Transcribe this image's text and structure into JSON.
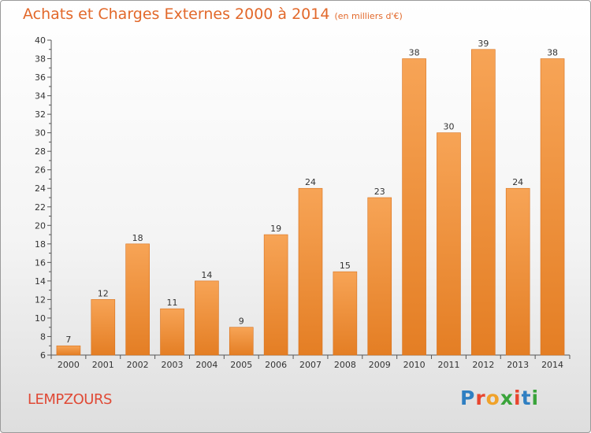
{
  "title": {
    "main": "Achats et Charges Externes 2000 à 2014",
    "sub": "(en milliers d'€)"
  },
  "commune": "LEMPZOURS",
  "logo": {
    "text": "Proxiti",
    "colors": [
      "#2f7fc2",
      "#e8462f",
      "#f0a22a",
      "#3aa43b",
      "#e8462f",
      "#2f7fc2",
      "#3aa43b"
    ]
  },
  "colors": {
    "bar_light": "#f7a456",
    "bar_dark": "#e47e24",
    "title": "#e2682a",
    "commune": "#e04a36"
  },
  "chart_data": {
    "type": "bar",
    "categories": [
      "2000",
      "2001",
      "2002",
      "2003",
      "2004",
      "2005",
      "2006",
      "2007",
      "2008",
      "2009",
      "2010",
      "2011",
      "2012",
      "2013",
      "2014"
    ],
    "values": [
      7,
      12,
      18,
      11,
      14,
      9,
      19,
      24,
      15,
      23,
      38,
      30,
      39,
      24,
      38
    ],
    "ylim": [
      6,
      40
    ],
    "yticks": [
      6,
      8,
      10,
      12,
      14,
      16,
      18,
      20,
      22,
      24,
      26,
      28,
      30,
      32,
      34,
      36,
      38,
      40
    ],
    "grid": false,
    "data_labels": true
  }
}
